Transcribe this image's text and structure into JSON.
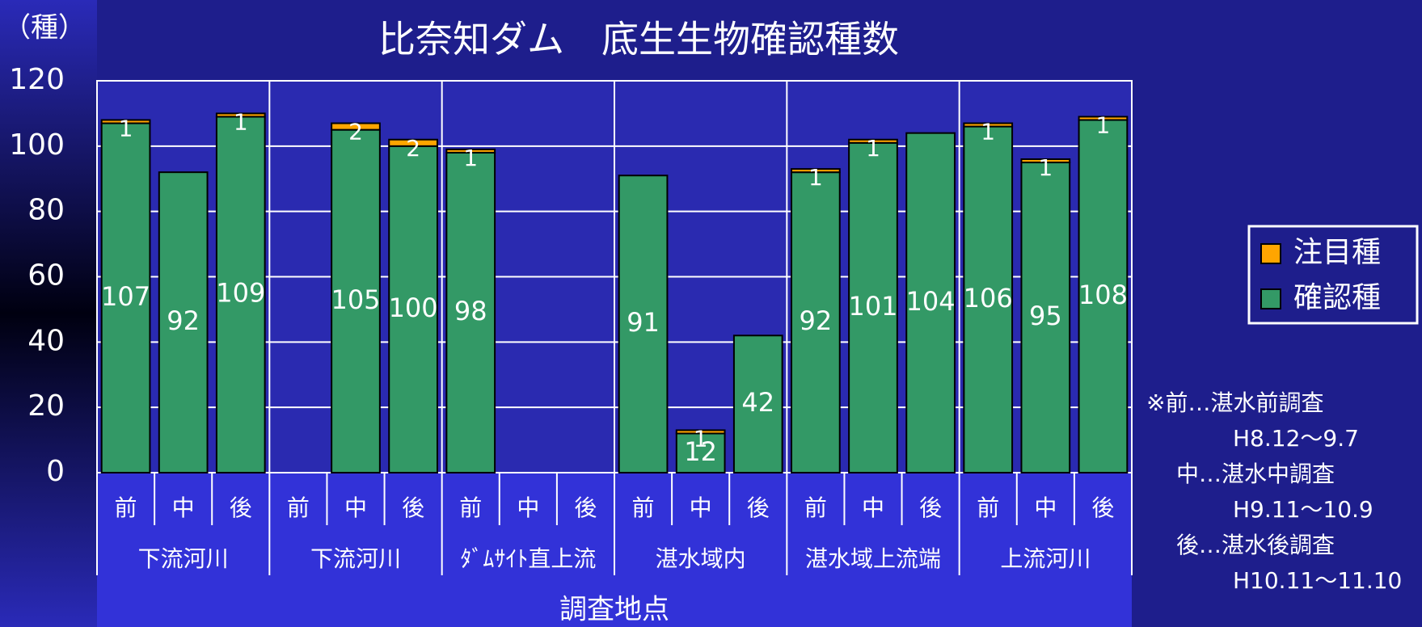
{
  "chart_data": {
    "type": "stacked_bar",
    "title": "比奈知ダム　底生生物確認種数",
    "y_label": "（種）",
    "x_label": "調査地点",
    "groups": [
      "下流河川",
      "下流河川",
      "ﾀﾞﾑｻｲﾄ直上流",
      "湛水域内",
      "湛水域上流端",
      "上流河川"
    ],
    "categories": [
      "前",
      "中",
      "後",
      "前",
      "中",
      "後",
      "前",
      "中",
      "後",
      "前",
      "中",
      "後",
      "前",
      "中",
      "後",
      "前",
      "中",
      "後"
    ],
    "series": [
      {
        "name": "確認種",
        "color": "#339966",
        "values": [
          107,
          92,
          109,
          null,
          105,
          100,
          98,
          null,
          null,
          91,
          12,
          42,
          92,
          101,
          104,
          106,
          95,
          108
        ]
      },
      {
        "name": "注目種",
        "color": "#ffa500",
        "values": [
          1,
          null,
          1,
          null,
          2,
          2,
          1,
          null,
          null,
          null,
          1,
          null,
          1,
          1,
          null,
          1,
          1,
          1
        ]
      }
    ],
    "ylim": [
      0,
      120
    ],
    "yticks": [
      0,
      20,
      40,
      60,
      80,
      100,
      120
    ],
    "grid": true,
    "notes": [
      "※前…湛水前調査",
      "H8.12～9.7",
      "中…湛水中調査",
      "H9.11～10.9",
      "後…湛水後調査",
      "H10.11～11.10"
    ]
  }
}
